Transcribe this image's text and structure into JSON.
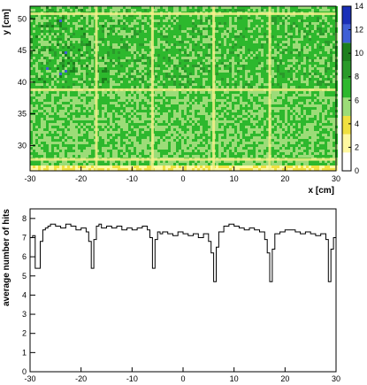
{
  "chart_data": [
    {
      "type": "heatmap",
      "title": "",
      "xlabel": "x [cm]",
      "ylabel": "y [cm]",
      "xlim": [
        -30,
        30
      ],
      "ylim": [
        26,
        52
      ],
      "x_ticks": [
        "-30",
        "-20",
        "-10",
        "0",
        "10",
        "20",
        "30"
      ],
      "y_ticks": [
        "30",
        "35",
        "40",
        "45",
        "50"
      ],
      "zlim": [
        0,
        14
      ],
      "colorbar_ticks": [
        "0",
        "2",
        "4",
        "6",
        "8",
        "10",
        "12",
        "14"
      ],
      "colorbar_colors": [
        "#ffffff",
        "#fff8a0",
        "#f0e040",
        "#9cdc78",
        "#2db82d",
        "#2a9a2a",
        "#1d7f1d",
        "#3f5fd6",
        "#1a2fb8"
      ],
      "grid_lines_x": [
        -17,
        -6,
        6,
        17
      ],
      "grid_lines_y": [
        27.8,
        38.8,
        50.8
      ],
      "region_means": [
        {
          "y_range": [
            39,
            52
          ],
          "mean_hits": 7.6
        },
        {
          "y_range": [
            27,
            39
          ],
          "mean_hits": 7.0
        }
      ]
    },
    {
      "type": "line",
      "title": "",
      "xlabel": "",
      "ylabel": "average number of hits",
      "xlim": [
        -30,
        30
      ],
      "ylim": [
        0,
        8.5
      ],
      "x_ticks": [
        "-30",
        "-20",
        "-10",
        "0",
        "10",
        "20",
        "30"
      ],
      "y_ticks": [
        "0",
        "1",
        "2",
        "3",
        "4",
        "5",
        "6",
        "7",
        "8"
      ],
      "series": [
        {
          "name": "",
          "x": [
            -30,
            -29.5,
            -29,
            -28.5,
            -28,
            -27.5,
            -27,
            -26.5,
            -26,
            -25,
            -24,
            -23,
            -22,
            -21,
            -20,
            -19,
            -18.5,
            -18,
            -17.5,
            -17,
            -16.5,
            -16,
            -15,
            -14,
            -13,
            -12,
            -11,
            -10,
            -9,
            -8,
            -7,
            -6.5,
            -6,
            -5.5,
            -5,
            -4.5,
            -4,
            -3,
            -2,
            -1,
            0,
            1,
            2,
            3,
            4,
            5,
            5.5,
            6,
            6.5,
            7,
            8,
            9,
            10,
            11,
            12,
            13,
            14,
            15,
            16,
            16.5,
            17,
            17.5,
            18,
            19,
            20,
            21,
            22,
            23,
            24,
            25,
            26,
            27,
            28,
            28.5,
            29,
            29.5,
            30
          ],
          "y": [
            7.0,
            7.1,
            5.4,
            5.4,
            6.8,
            7.4,
            7.5,
            7.6,
            7.7,
            7.6,
            7.5,
            7.7,
            7.6,
            7.4,
            7.5,
            7.3,
            6.8,
            5.4,
            6.9,
            7.6,
            7.7,
            7.5,
            7.6,
            7.5,
            7.6,
            7.4,
            7.5,
            7.4,
            7.5,
            7.6,
            7.4,
            7.0,
            5.4,
            6.9,
            7.3,
            7.2,
            7.3,
            7.2,
            7.1,
            7.3,
            7.2,
            7.1,
            7.2,
            7.0,
            7.2,
            6.8,
            6.2,
            4.7,
            6.5,
            7.3,
            7.6,
            7.7,
            7.6,
            7.5,
            7.4,
            7.5,
            7.4,
            7.3,
            6.9,
            6.2,
            4.7,
            6.4,
            7.2,
            7.3,
            7.4,
            7.4,
            7.3,
            7.2,
            7.3,
            7.2,
            7.1,
            7.2,
            6.9,
            4.7,
            6.4,
            7.0,
            7.2
          ]
        }
      ]
    }
  ]
}
